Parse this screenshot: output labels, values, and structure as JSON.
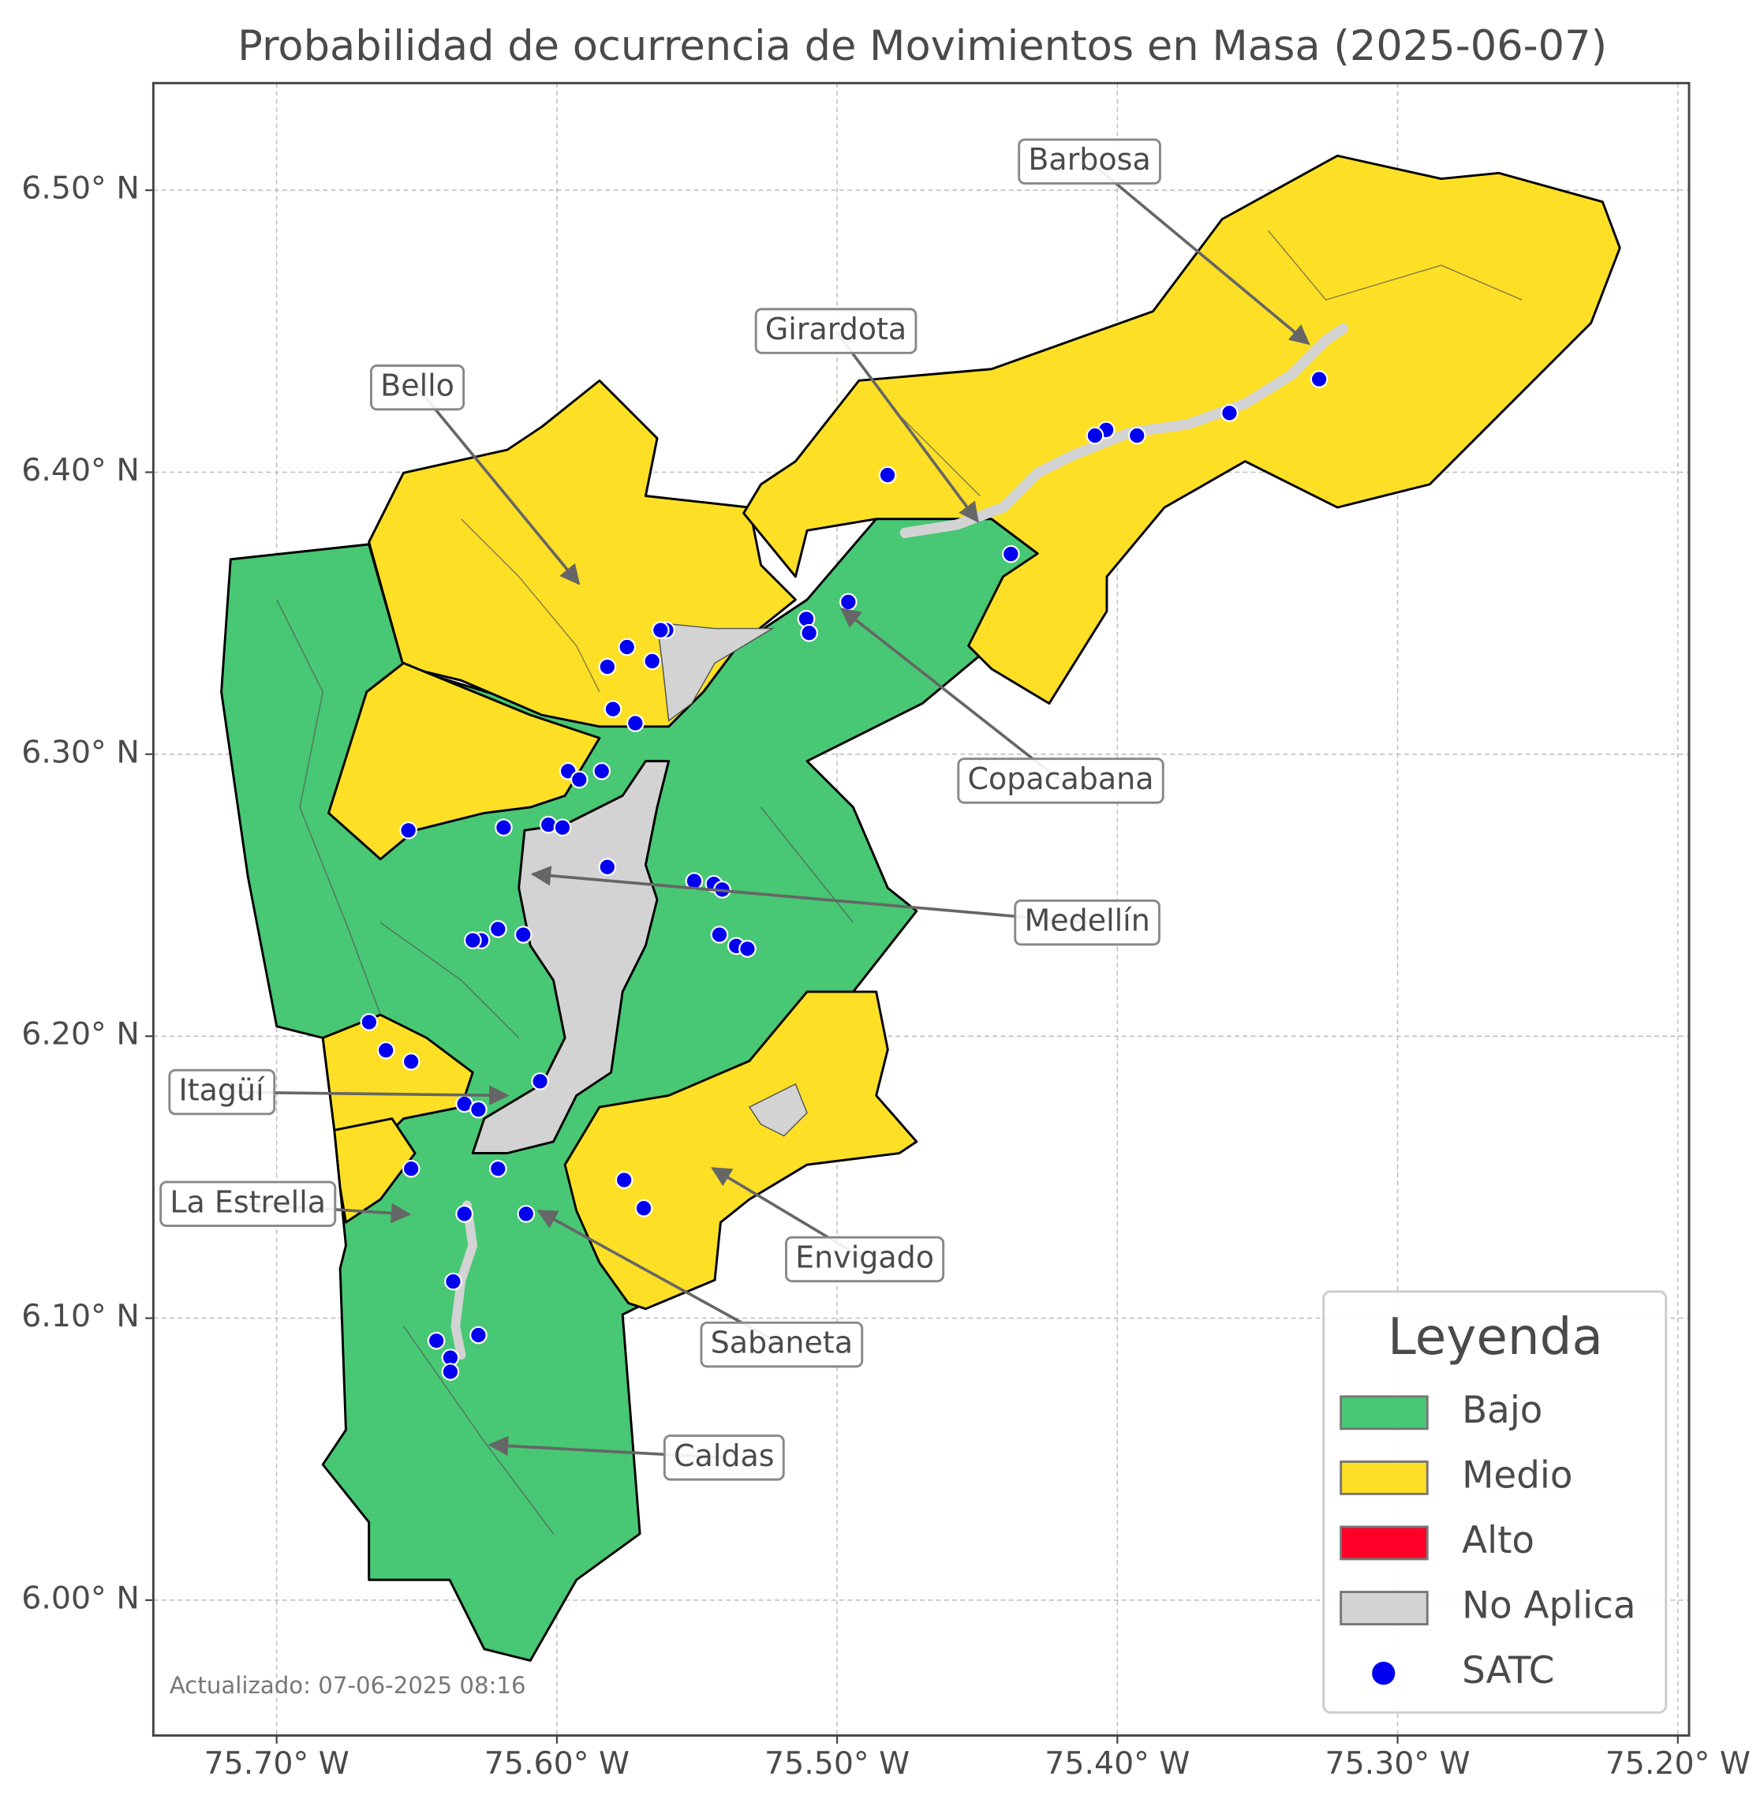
{
  "chart_data": {
    "type": "map",
    "title": "Probabilidad de ocurrencia de Movimientos en Masa (2025-06-07)",
    "xlim": [
      -75.744,
      -75.196
    ],
    "ylim": [
      5.952,
      6.538
    ],
    "xticks": [
      {
        "value": -75.7,
        "label": "75.70° W"
      },
      {
        "value": -75.6,
        "label": "75.60° W"
      },
      {
        "value": -75.5,
        "label": "75.50° W"
      },
      {
        "value": -75.4,
        "label": "75.40° W"
      },
      {
        "value": -75.3,
        "label": "75.30° W"
      },
      {
        "value": -75.2,
        "label": "75.20° W"
      }
    ],
    "yticks": [
      {
        "value": 6.0,
        "label": "6.00° N"
      },
      {
        "value": 6.1,
        "label": "6.10° N"
      },
      {
        "value": 6.2,
        "label": "6.20° N"
      },
      {
        "value": 6.3,
        "label": "6.30° N"
      },
      {
        "value": 6.4,
        "label": "6.40° N"
      },
      {
        "value": 6.5,
        "label": "6.50° N"
      }
    ],
    "grid": true,
    "series": [
      {
        "name": "SATC",
        "color": "#0000ee",
        "x": [
          -75.328,
          -75.36,
          -75.393,
          -75.404,
          -75.408,
          -75.482,
          -75.438,
          -75.496,
          -75.511,
          -75.51,
          -75.561,
          -75.563,
          -75.575,
          -75.566,
          -75.582,
          -75.58,
          -75.572,
          -75.596,
          -75.592,
          -75.584,
          -75.603,
          -75.598,
          -75.619,
          -75.653,
          -75.582,
          -75.551,
          -75.544,
          -75.541,
          -75.542,
          -75.536,
          -75.532,
          -75.612,
          -75.621,
          -75.627,
          -75.63,
          -75.667,
          -75.661,
          -75.652,
          -75.606,
          -75.633,
          -75.628,
          -75.652,
          -75.621,
          -75.576,
          -75.569,
          -75.633,
          -75.611,
          -75.637,
          -75.643,
          -75.628,
          -75.638,
          -75.638
        ],
        "y": [
          6.433,
          6.421,
          6.413,
          6.415,
          6.413,
          6.399,
          6.371,
          6.354,
          6.348,
          6.343,
          6.344,
          6.344,
          6.338,
          6.333,
          6.331,
          6.316,
          6.311,
          6.294,
          6.291,
          6.294,
          6.275,
          6.274,
          6.274,
          6.273,
          6.26,
          6.255,
          6.254,
          6.252,
          6.236,
          6.232,
          6.231,
          6.236,
          6.238,
          6.234,
          6.234,
          6.205,
          6.195,
          6.191,
          6.184,
          6.176,
          6.174,
          6.153,
          6.153,
          6.149,
          6.139,
          6.137,
          6.137,
          6.113,
          6.092,
          6.094,
          6.086,
          6.081
        ]
      }
    ],
    "annotations": [
      {
        "text": "Barbosa"
      },
      {
        "text": "Girardota"
      },
      {
        "text": "Bello"
      },
      {
        "text": "Copacabana"
      },
      {
        "text": "Medellín"
      },
      {
        "text": "Itagüí"
      },
      {
        "text": "La Estrella"
      },
      {
        "text": "Envigado"
      },
      {
        "text": "Sabaneta"
      },
      {
        "text": "Caldas"
      }
    ],
    "legend": {
      "title": "Leyenda",
      "position": "lower right",
      "entries": [
        {
          "name": "Bajo",
          "color": "#48c774"
        },
        {
          "name": "Medio",
          "color": "#fde025"
        },
        {
          "name": "Alto",
          "color": "#ff0028"
        },
        {
          "name": "No Aplica",
          "color": "#d3d3d3"
        }
      ]
    },
    "note": "Actualizado: 07-06-2025 08:16"
  }
}
